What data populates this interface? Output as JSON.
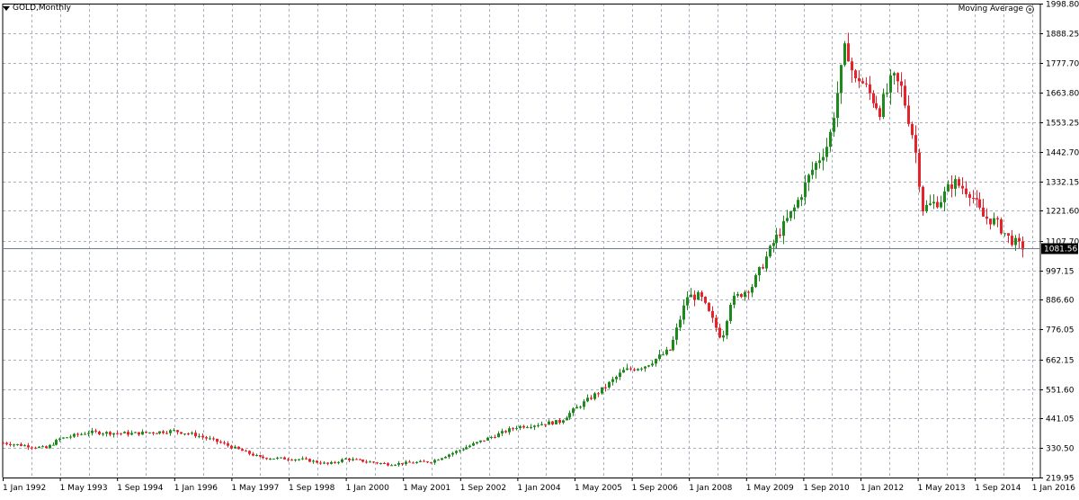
{
  "symbol_label": "GOLD,Monthly",
  "indicator_label": "Moving Average",
  "icons": {
    "dropdown": "triangle-down-icon",
    "settings": "gear-icon"
  },
  "colors": {
    "background": "#ffffff",
    "grid": "#a8b0bf",
    "axis": "#000000",
    "bull": "#1e8a1e",
    "bear": "#e8222b",
    "price_line": "#6b7a8f",
    "price_box": "#000000",
    "price_text": "#ffffff"
  },
  "chart_data": {
    "type": "candlestick",
    "title": "GOLD,Monthly",
    "grid": true,
    "ylim": [
      219.95,
      1998.8
    ],
    "y_ticks": [
      "1998.80",
      "1888.25",
      "1777.70",
      "1663.80",
      "1553.25",
      "1442.70",
      "1332.15",
      "1221.60",
      "1107.70",
      "997.15",
      "886.60",
      "776.05",
      "662.15",
      "551.60",
      "441.05",
      "330.50",
      "219.95"
    ],
    "x_ticks": [
      "1 Jan 1992",
      "1 May 1993",
      "1 Sep 1994",
      "1 Jan 1996",
      "1 May 1997",
      "1 Sep 1998",
      "1 Jan 2000",
      "1 May 2001",
      "1 Sep 2002",
      "1 Jan 2004",
      "1 May 2005",
      "1 Sep 2006",
      "1 Jan 2008",
      "1 May 2009",
      "1 Sep 2010",
      "1 Jan 2012",
      "1 May 2013",
      "1 Sep 2014",
      "1 Jan 2016"
    ],
    "x_start": "1992-01",
    "last_price": "1081.56",
    "close_series": [
      [
        1992.0,
        350
      ],
      [
        1993.0,
        330
      ],
      [
        1993.33,
        365
      ],
      [
        1994.0,
        390
      ],
      [
        1995.0,
        385
      ],
      [
        1996.0,
        395
      ],
      [
        1996.5,
        380
      ],
      [
        1997.0,
        355
      ],
      [
        1998.0,
        295
      ],
      [
        1999.0,
        288
      ],
      [
        1999.6,
        270
      ],
      [
        2000.0,
        290
      ],
      [
        2001.0,
        270
      ],
      [
        2001.5,
        275
      ],
      [
        2002.0,
        280
      ],
      [
        2003.0,
        345
      ],
      [
        2004.0,
        410
      ],
      [
        2005.0,
        430
      ],
      [
        2005.4,
        480
      ],
      [
        2006.0,
        550
      ],
      [
        2006.5,
        620
      ],
      [
        2007.0,
        640
      ],
      [
        2007.6,
        700
      ],
      [
        2008.0,
        900
      ],
      [
        2008.3,
        900
      ],
      [
        2008.8,
        740
      ],
      [
        2009.0,
        880
      ],
      [
        2009.5,
        940
      ],
      [
        2010.0,
        1100
      ],
      [
        2010.5,
        1230
      ],
      [
        2010.9,
        1370
      ],
      [
        2011.3,
        1480
      ],
      [
        2011.7,
        1850
      ],
      [
        2011.9,
        1700
      ],
      [
        2012.0,
        1720
      ],
      [
        2012.5,
        1600
      ],
      [
        2012.8,
        1720
      ],
      [
        2013.0,
        1680
      ],
      [
        2013.3,
        1480
      ],
      [
        2013.5,
        1230
      ],
      [
        2013.9,
        1260
      ],
      [
        2014.2,
        1330
      ],
      [
        2014.6,
        1290
      ],
      [
        2014.9,
        1200
      ],
      [
        2015.2,
        1180
      ],
      [
        2015.5,
        1120
      ],
      [
        2015.8,
        1085
      ]
    ]
  },
  "x_labels": [
    "1 Jan 1992",
    "1 May 1993",
    "1 Sep 1994",
    "1 Jan 1996",
    "1 May 1997",
    "1 Sep 1998",
    "1 Jan 2000",
    "1 May 2001",
    "1 Sep 2002",
    "1 Jan 2004",
    "1 May 2005",
    "1 Sep 2006",
    "1 Jan 2008",
    "1 May 2009",
    "1 Sep 2010",
    "1 Jan 2012",
    "1 May 2013",
    "1 Sep 2014",
    "1 Jan 2016"
  ]
}
